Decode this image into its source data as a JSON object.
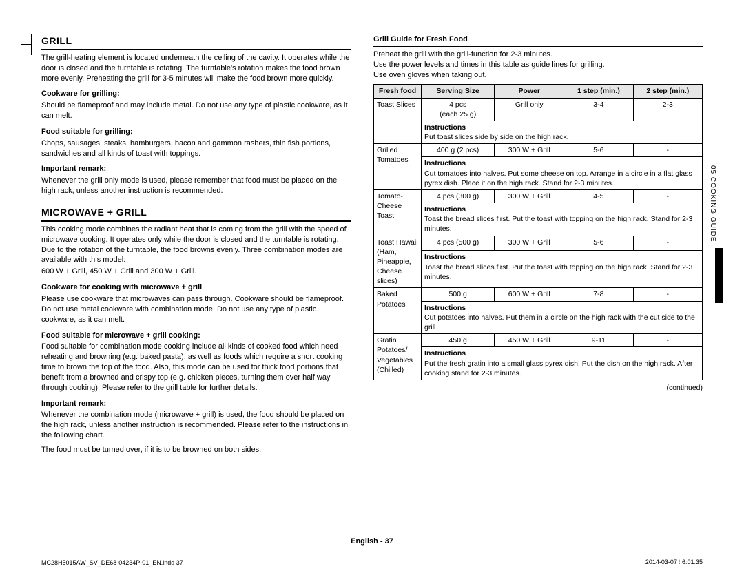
{
  "side_tab": "05  COOKING GUIDE",
  "footer_center": "English - 37",
  "footer_left": "MC28H5015AW_SV_DE68-04234P-01_EN.indd   37",
  "footer_right": "2014-03-07   ⦙ 6:01:35",
  "left": {
    "grill_heading": "GRILL",
    "grill_intro": "The grill-heating element is located underneath the ceiling of the cavity. It operates while the door is closed and the turntable is rotating. The turntable's rotation makes the food brown more evenly. Preheating the grill for 3-5 minutes will make the food brown more quickly.",
    "cookware_label": "Cookware for grilling:",
    "cookware_text": "Should be flameproof and may include metal. Do not use any type of plastic cookware, as it can melt.",
    "food_label": "Food suitable for grilling:",
    "food_text": "Chops, sausages, steaks, hamburgers, bacon and gammon rashers, thin fish portions, sandwiches and all kinds of toast with toppings.",
    "remark_label": "Important remark:",
    "remark_text": "Whenever the grill only mode is used, please remember that food must be placed on the high rack, unless another instruction is recommended.",
    "mw_heading": "MICROWAVE + GRILL",
    "mw_intro": "This cooking mode combines the radiant heat that is coming from the grill with the speed of microwave cooking. It operates only while the door is closed and the turntable is rotating. Due to the rotation of the turntable, the food browns evenly. Three combination modes are available with this model:",
    "mw_modes": "600 W + Grill, 450 W + Grill and 300 W + Grill.",
    "mw_cook_label": "Cookware for cooking with microwave + grill",
    "mw_cook_text": "Please use cookware that microwaves can pass through. Cookware should be flameproof. Do not use metal cookware with combination mode. Do not use any type of plastic cookware, as it can melt.",
    "mw_food_label": "Food suitable for microwave + grill cooking:",
    "mw_food_text": "Food suitable for combination mode cooking include all kinds of cooked food which need reheating and browning (e.g. baked pasta), as well as foods which require a short cooking time to brown the top of the food. Also, this mode can be used for thick food portions that benefit from a browned and crispy top (e.g. chicken pieces, turning them over half way through cooking). Please refer to the grill table for further details.",
    "mw_remark_label": "Important remark:",
    "mw_remark1": "Whenever the combination mode (microwave + grill) is used, the food should be placed on the high rack, unless another instruction is recommended. Please refer to the instructions in the following chart.",
    "mw_remark2": "The food must be turned over, if it is to be browned on both sides."
  },
  "right": {
    "guide_title": "Grill Guide for Fresh Food",
    "preheat": "Preheat the grill with the grill-function for 2-3 minutes.",
    "use_power": "Use the power levels and times in this table as guide lines for grilling.",
    "use_gloves": "Use oven gloves when taking out.",
    "continued": "(continued)",
    "headers": {
      "c1": "Fresh food",
      "c2": "Serving Size",
      "c3": "Power",
      "c4": "1 step (min.)",
      "c5": "2 step (min.)"
    },
    "rows": [
      {
        "food": "Toast Slices",
        "size": "4 pcs\n(each 25 g)",
        "power": "Grill only",
        "s1": "3-4",
        "s2": "2-3",
        "instr": "Put toast slices side by side on the high rack."
      },
      {
        "food": "Grilled\nTomatoes",
        "size": "400 g (2 pcs)",
        "power": "300 W + Grill",
        "s1": "5-6",
        "s2": "-",
        "instr": "Cut tomatoes into halves. Put some cheese on top. Arrange in a circle in a flat glass pyrex dish. Place it on the high rack. Stand for 2-3 minutes."
      },
      {
        "food": "Tomato-\nCheese Toast",
        "size": "4 pcs (300 g)",
        "power": "300 W + Grill",
        "s1": "4-5",
        "s2": "-",
        "instr": "Toast the bread slices first. Put the toast with topping on the high rack. Stand for 2-3 minutes."
      },
      {
        "food": "Toast Hawaii\n(Ham,\nPineapple,\nCheese slices)",
        "size": "4 pcs (500 g)",
        "power": "300 W + Grill",
        "s1": "5-6",
        "s2": "-",
        "instr": "Toast the bread slices first. Put the toast with topping on the high rack. Stand for 2-3 minutes."
      },
      {
        "food": "Baked\nPotatoes",
        "size": "500 g",
        "power": "600 W + Grill",
        "s1": "7-8",
        "s2": "-",
        "instr": "Cut potatoes into halves. Put them in a circle on the high rack with the cut side to the grill."
      },
      {
        "food": "Gratin\nPotatoes/\nVegetables\n(Chilled)",
        "size": "450 g",
        "power": "450 W + Grill",
        "s1": "9-11",
        "s2": "-",
        "instr": "Put the fresh gratin into a small glass pyrex dish. Put the dish on the high rack. After cooking stand for 2-3 minutes."
      }
    ]
  }
}
